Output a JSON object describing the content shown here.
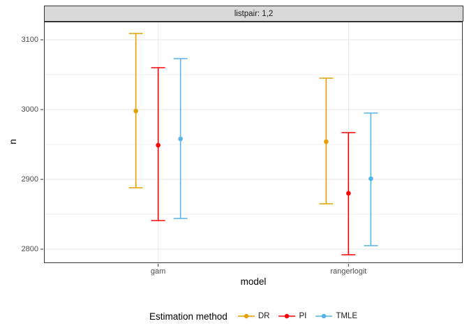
{
  "chart_data": {
    "type": "pointrange",
    "facet_label": "listpair: 1,2",
    "title": "",
    "xlabel": "model",
    "ylabel": "n",
    "categories": [
      "gam",
      "rangerlogit"
    ],
    "ylim": [
      2780,
      3126
    ],
    "yticks": [
      2800,
      2900,
      3000,
      3100
    ],
    "y_minor_step": 50,
    "grid": "major and minor horizontal, major vertical at category centers",
    "legend_title": "Estimation method",
    "legend_position": "bottom",
    "series": [
      {
        "name": "DR",
        "color": "#E69F00",
        "points": [
          {
            "x": "gam",
            "y": 2998,
            "ymin": 2888,
            "ymax": 3109
          },
          {
            "x": "rangerlogit",
            "y": 2954,
            "ymin": 2865,
            "ymax": 3045
          }
        ]
      },
      {
        "name": "PI",
        "color": "#FF0000",
        "points": [
          {
            "x": "gam",
            "y": 2949,
            "ymin": 2841,
            "ymax": 3060
          },
          {
            "x": "rangerlogit",
            "y": 2880,
            "ymin": 2792,
            "ymax": 2967
          }
        ]
      },
      {
        "name": "TMLE",
        "color": "#56B4E9",
        "points": [
          {
            "x": "gam",
            "y": 2958,
            "ymin": 2844,
            "ymax": 3073
          },
          {
            "x": "rangerlogit",
            "y": 2901,
            "ymin": 2805,
            "ymax": 2995
          }
        ]
      }
    ],
    "colors": {
      "strip_bg": "#D9D9D9",
      "panel_border": "#333333",
      "grid_major": "#E6E6E6",
      "grid_minor": "#F2F2F2",
      "tick_mark": "#333333",
      "tick_label": "#4D4D4D",
      "background": "#FFFFFF"
    }
  }
}
